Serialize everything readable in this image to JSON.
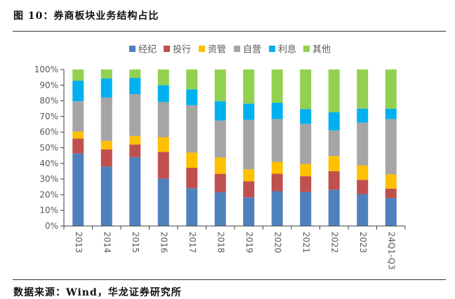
{
  "figure": {
    "title": "图 10：券商板块业务结构占比",
    "source": "数据来源：Wind，华龙证券研究所"
  },
  "chart_data": {
    "type": "bar",
    "stacked": true,
    "percent_stacked": true,
    "title": "券商板块业务结构占比",
    "xlabel": "",
    "ylabel": "",
    "ylim": [
      0,
      100
    ],
    "yticks": [
      "0%",
      "10%",
      "20%",
      "30%",
      "40%",
      "50%",
      "60%",
      "70%",
      "80%",
      "90%",
      "100%"
    ],
    "legend_position": "top-center",
    "grid": false,
    "categories": [
      "2013",
      "2014",
      "2015",
      "2016",
      "2017",
      "2018",
      "2019",
      "2020",
      "2021",
      "2022",
      "2023",
      "24Q1-Q3"
    ],
    "series": [
      {
        "name": "经纪",
        "color": "#4F81BD",
        "values": [
          46.4,
          38.0,
          44.1,
          30.3,
          24.1,
          21.6,
          18.3,
          22.2,
          21.8,
          23.2,
          20.4,
          17.9
        ]
      },
      {
        "name": "投行",
        "color": "#C0504D",
        "values": [
          9.5,
          10.9,
          8.0,
          17.0,
          13.1,
          11.8,
          10.3,
          11.2,
          10.0,
          11.8,
          9.1,
          6.0
        ]
      },
      {
        "name": "资管",
        "color": "#FFC000",
        "values": [
          4.5,
          5.5,
          5.4,
          9.4,
          9.7,
          10.4,
          7.6,
          7.6,
          7.9,
          9.7,
          9.3,
          9.1
        ]
      },
      {
        "name": "自营",
        "color": "#A5A5A5",
        "values": [
          19.4,
          27.7,
          26.8,
          22.5,
          30.3,
          23.6,
          31.6,
          27.3,
          25.6,
          16.4,
          27.3,
          35.3
        ]
      },
      {
        "name": "利息",
        "color": "#00B0F0",
        "values": [
          13.1,
          12.2,
          10.3,
          10.7,
          10.1,
          12.4,
          10.4,
          10.4,
          9.4,
          11.6,
          8.9,
          6.7
        ]
      },
      {
        "name": "其他",
        "color": "#92D050",
        "values": [
          7.2,
          5.7,
          5.4,
          10.1,
          12.7,
          20.3,
          21.8,
          21.3,
          25.3,
          27.3,
          25.0,
          25.0
        ]
      }
    ]
  }
}
